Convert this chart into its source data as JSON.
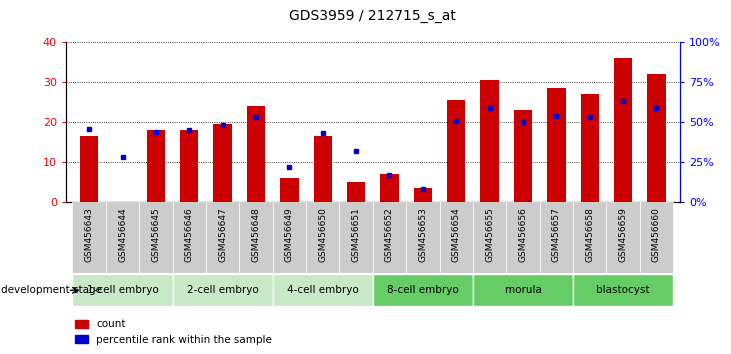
{
  "title": "GDS3959 / 212715_s_at",
  "samples": [
    "GSM456643",
    "GSM456644",
    "GSM456645",
    "GSM456646",
    "GSM456647",
    "GSM456648",
    "GSM456649",
    "GSM456650",
    "GSM456651",
    "GSM456652",
    "GSM456653",
    "GSM456654",
    "GSM456655",
    "GSM456656",
    "GSM456657",
    "GSM456658",
    "GSM456659",
    "GSM456660"
  ],
  "count_values": [
    16.5,
    0,
    18,
    18,
    19.5,
    24,
    6,
    16.5,
    5,
    7,
    3.5,
    25.5,
    30.5,
    23,
    28.5,
    27,
    36,
    32
  ],
  "percentile_values": [
    46,
    28,
    44,
    45,
    48,
    53,
    22,
    43,
    32,
    17,
    8,
    51,
    59,
    50,
    54,
    53,
    63,
    59
  ],
  "stage_defs": [
    {
      "label": "1-cell embryo",
      "start": 0,
      "end": 3,
      "color": "#c8e8c8"
    },
    {
      "label": "2-cell embryo",
      "start": 3,
      "end": 6,
      "color": "#c8e8c8"
    },
    {
      "label": "4-cell embryo",
      "start": 6,
      "end": 9,
      "color": "#c8e8c8"
    },
    {
      "label": "8-cell embryo",
      "start": 9,
      "end": 12,
      "color": "#66cc66"
    },
    {
      "label": "morula",
      "start": 12,
      "end": 15,
      "color": "#66cc66"
    },
    {
      "label": "blastocyst",
      "start": 15,
      "end": 18,
      "color": "#66cc66"
    }
  ],
  "ylim_left": [
    0,
    40
  ],
  "ylim_right": [
    0,
    100
  ],
  "yticks_left": [
    0,
    10,
    20,
    30,
    40
  ],
  "yticks_right": [
    0,
    25,
    50,
    75,
    100
  ],
  "ytick_labels_right": [
    "0%",
    "25%",
    "50%",
    "75%",
    "100%"
  ],
  "bar_color": "#cc0000",
  "dot_color": "#0000cc",
  "title_fontsize": 10,
  "n_samples": 18
}
